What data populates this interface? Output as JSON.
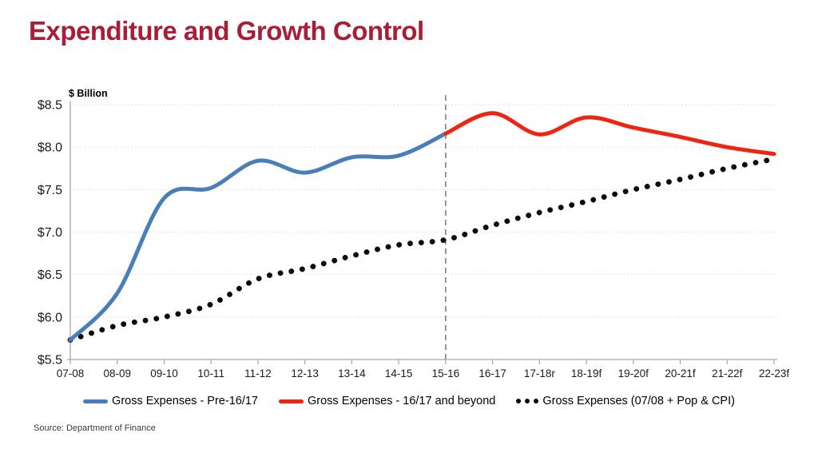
{
  "slide": {
    "title": "Expenditure and Growth Control",
    "source": "Source: Department of Finance"
  },
  "colors": {
    "title": "#a81e36",
    "blue": "#4a7ebb",
    "red": "#ee2511",
    "dots": "#0a0a0a",
    "grid": "#d9d9d9",
    "axis": "#a6a6a6",
    "divider": "#7f7f7f",
    "ticktext": "#1a1a1a"
  },
  "chart_data": {
    "type": "line",
    "title": "Expenditure and Growth Control",
    "xlabel": "",
    "ylabel": "$ Billion",
    "ylim": [
      5.5,
      8.5
    ],
    "grid": "horizontal dotted gridlines",
    "legend_position": "bottom",
    "categories": [
      "07-08",
      "08-09",
      "09-10",
      "10-11",
      "11-12",
      "12-13",
      "13-14",
      "14-15",
      "15-16",
      "16-17",
      "17-18r",
      "18-19f",
      "19-20f",
      "20-21f",
      "21-22f",
      "22-23f"
    ],
    "y_ticks": [
      {
        "label": "$8.5",
        "value": 8.5
      },
      {
        "label": "$8.0",
        "value": 8.0
      },
      {
        "label": "$7.5",
        "value": 7.5
      },
      {
        "label": "$7.0",
        "value": 7.0
      },
      {
        "label": "$6.5",
        "value": 6.5
      },
      {
        "label": "$6.0",
        "value": 6.0
      },
      {
        "label": "$5.5",
        "value": 5.5
      }
    ],
    "divider": {
      "category": "15-16",
      "index": 8,
      "style": "vertical dashed gray line"
    },
    "series": [
      {
        "id": "gross-expenses-pre-1617",
        "name": "Gross Expenses - Pre-16/17",
        "color": "#4a7ebb",
        "style": "solid",
        "start_index": 0,
        "values": [
          5.73,
          6.28,
          7.4,
          7.52,
          7.84,
          7.7,
          7.88,
          7.9,
          8.16
        ]
      },
      {
        "id": "gross-expenses-1617-and-beyond",
        "name": "Gross Expenses - 16/17 and beyond",
        "color": "#ee2511",
        "style": "solid",
        "start_index": 8,
        "values": [
          8.16,
          8.4,
          8.15,
          8.35,
          8.23,
          8.12,
          8.0,
          7.92
        ]
      },
      {
        "id": "gross-expenses-0708-pop-cpi",
        "name": "Gross Expenses (07/08 + Pop & CPI)",
        "color": "#0a0a0a",
        "style": "dotted",
        "start_index": 0,
        "values": [
          5.73,
          5.9,
          6.0,
          6.15,
          6.45,
          6.57,
          6.72,
          6.85,
          6.91,
          7.08,
          7.23,
          7.36,
          7.5,
          7.62,
          7.75,
          7.86
        ]
      }
    ]
  }
}
